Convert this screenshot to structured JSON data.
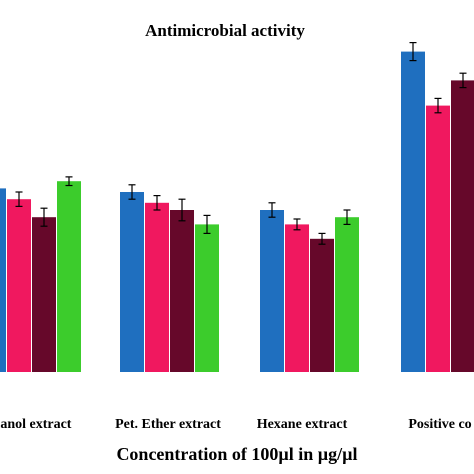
{
  "chart_data": {
    "type": "bar",
    "title": "Antimicrobial activity",
    "xlabel": "Concentration of 100µl  in µg/µl",
    "ylabel": "",
    "ylim": [
      0,
      100
    ],
    "grid": false,
    "legend": "none",
    "categories": [
      "Methanol extract",
      "Pet. Ether extract",
      "Hexane extract",
      "Positive control"
    ],
    "tick_labels": [
      "hanol extract",
      "Pet. Ether extract",
      "Hexane extract",
      "Positive co"
    ],
    "series": [
      {
        "color": "#1f6fbf",
        "values": [
          51,
          50,
          45,
          89
        ],
        "errors": [
          2,
          2,
          2,
          2.5
        ]
      },
      {
        "color": "#f0185f",
        "values": [
          48,
          47,
          41,
          74
        ],
        "errors": [
          2,
          2,
          1.5,
          2
        ]
      },
      {
        "color": "#66082a",
        "values": [
          43,
          45,
          37,
          81
        ],
        "errors": [
          2.5,
          3,
          1.5,
          2
        ]
      },
      {
        "color": "#3ccc2c",
        "values": [
          53,
          41,
          43,
          null
        ],
        "errors": [
          1.2,
          2.5,
          2,
          null
        ]
      }
    ]
  }
}
